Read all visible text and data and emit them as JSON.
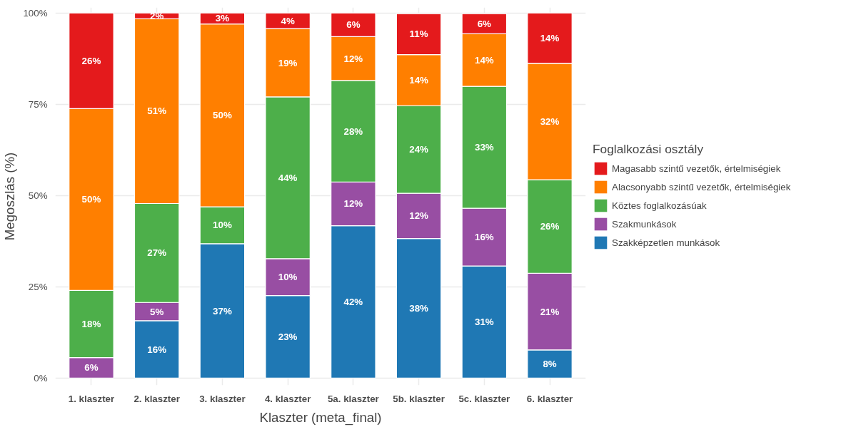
{
  "chart_data": {
    "type": "bar",
    "stacked": true,
    "xlabel": "Klaszter (meta_final)",
    "ylabel": "Megoszlás (%)",
    "legend_title": "Foglalkozási osztály",
    "legend": "right",
    "grid": true,
    "categories": [
      "1. klaszter",
      "2. klaszter",
      "3. klaszter",
      "4. klaszter",
      "5a. klaszter",
      "5b. klaszter",
      "5c. klaszter",
      "6. klaszter"
    ],
    "ylim": [
      0,
      100
    ],
    "yticks": [
      {
        "value": 0,
        "label": "0%"
      },
      {
        "value": 25,
        "label": "25%"
      },
      {
        "value": 50,
        "label": "50%"
      },
      {
        "value": 75,
        "label": "75%"
      },
      {
        "value": 100,
        "label": "100%"
      }
    ],
    "series": [
      {
        "name": "Szakképzetlen munkások",
        "color": "#1f78b4",
        "values": [
          null,
          15.7,
          36.8,
          22.6,
          41.7,
          38.2,
          30.7,
          7.7
        ],
        "value_labels": [
          null,
          "16%",
          "37%",
          "23%",
          "42%",
          "38%",
          "31%",
          "8%"
        ]
      },
      {
        "name": "Szakmunkások",
        "color": "#984ea3",
        "values": [
          5.6,
          5.0,
          null,
          10.1,
          12.0,
          12.4,
          15.8,
          21.0
        ],
        "value_labels": [
          "6%",
          "5%",
          null,
          "10%",
          "12%",
          "12%",
          "16%",
          "21%"
        ]
      },
      {
        "name": "Köztes foglalkozásúak",
        "color": "#4daf4a",
        "values": [
          18.4,
          27.1,
          10.1,
          44.3,
          27.8,
          24.0,
          33.4,
          25.6
        ],
        "value_labels": [
          "18%",
          "27%",
          "10%",
          "44%",
          "28%",
          "24%",
          "33%",
          "26%"
        ]
      },
      {
        "name": "Alacsonyabb szintű vezetők, értelmiségiek",
        "color": "#ff7f00",
        "values": [
          49.8,
          50.6,
          50.1,
          18.7,
          12.0,
          14.0,
          14.4,
          31.9
        ],
        "value_labels": [
          "50%",
          "51%",
          "50%",
          "19%",
          "12%",
          "14%",
          "14%",
          "32%"
        ]
      },
      {
        "name": "Magasabb szintű vezetők, értelmiségiek",
        "color": "#e41a1c",
        "values": [
          26.2,
          1.6,
          3.0,
          4.3,
          6.5,
          11.2,
          5.5,
          13.8
        ],
        "value_labels": [
          "26%",
          "2%",
          "3%",
          "4%",
          "6%",
          "11%",
          "6%",
          "14%"
        ]
      }
    ]
  }
}
